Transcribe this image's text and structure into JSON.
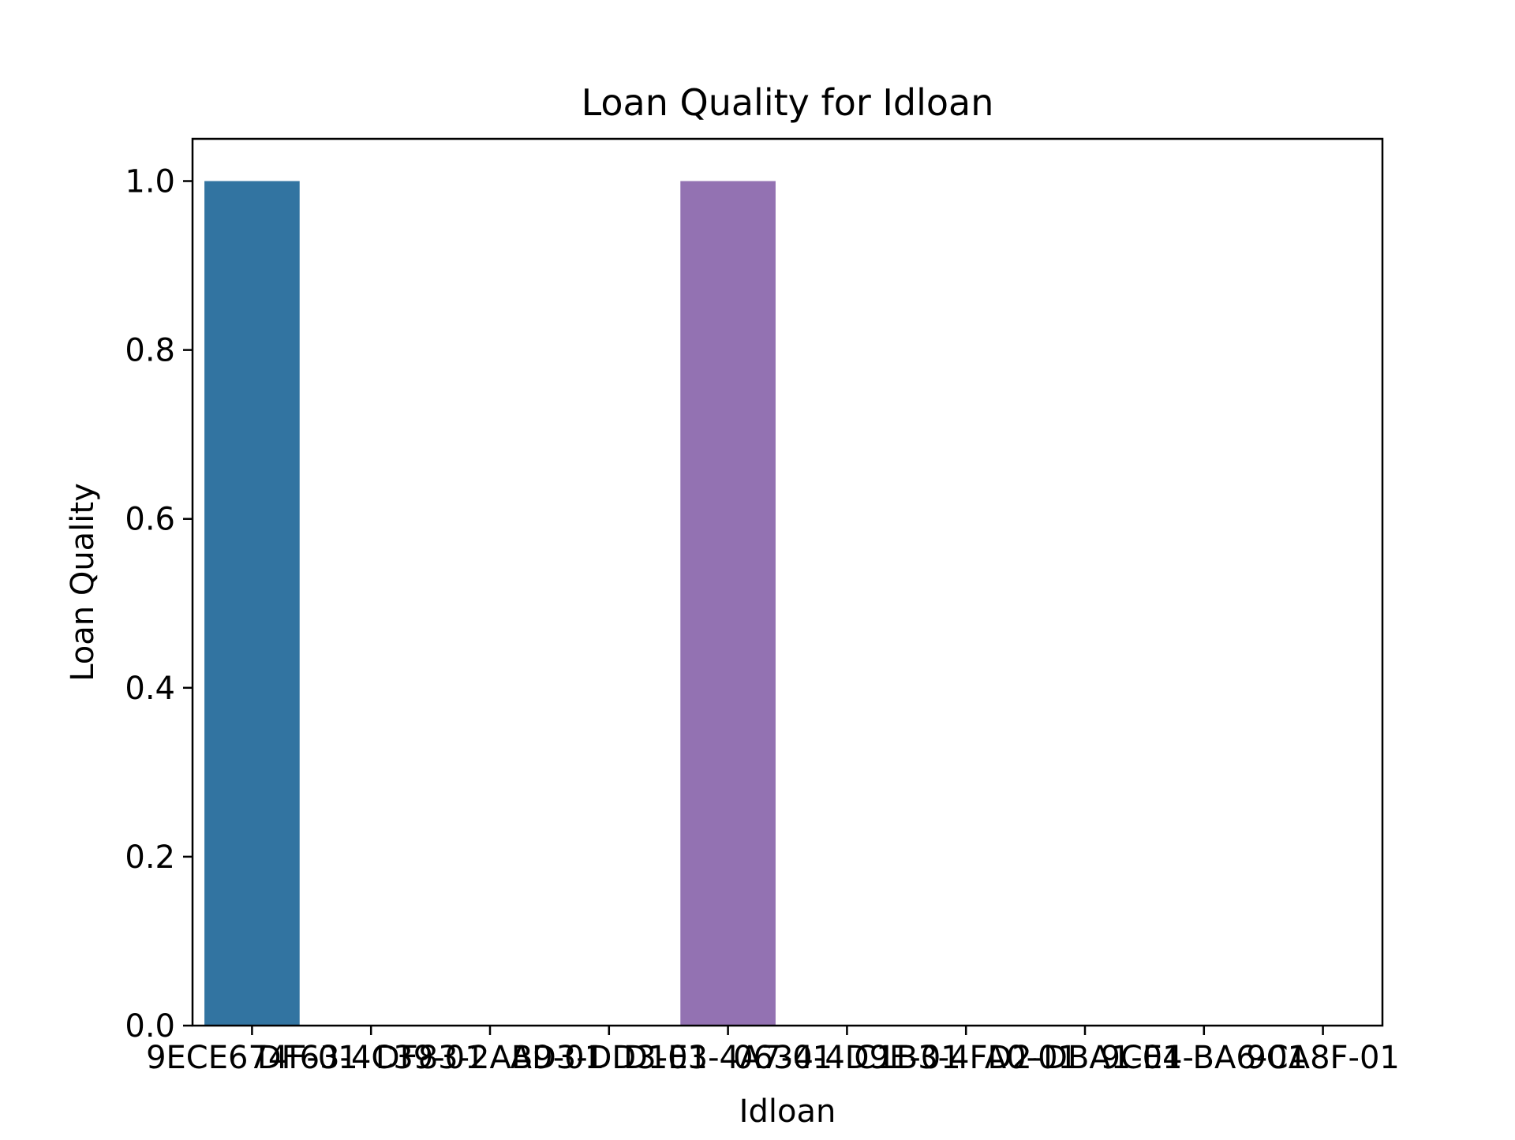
{
  "chart_data": {
    "type": "bar",
    "title": "Loan Quality for Idloan",
    "xlabel": "Idloan",
    "ylabel": "Loan Quality",
    "ylim": [
      0,
      1.05
    ],
    "yticks": [
      "0.0",
      "0.2",
      "0.4",
      "0.6",
      "0.8",
      "1.0"
    ],
    "ytick_values": [
      0,
      0.2,
      0.4,
      0.6,
      0.8,
      1.0
    ],
    "categories": [
      "9ECE674F-01",
      "DF63-4C39-01",
      "DF83-2AB9-01",
      "AD3-DD3-01",
      "D1E3-4A7-01",
      "0634-4D9E-01",
      "C1B3-4FA0-01",
      "D2-DBA1-01",
      "9CE4-BA6-01",
      "9CA8F-01"
    ],
    "values": [
      1,
      0,
      0,
      0,
      1,
      0,
      0,
      0,
      0,
      0
    ],
    "colors": [
      "#3274a1",
      "#e1812c",
      "#3a923a",
      "#c03d3e",
      "#9372b2",
      "#845b53",
      "#d684bd",
      "#7f7f7f",
      "#a9aa35",
      "#2ebdcd"
    ],
    "grid": false,
    "legend": "none"
  }
}
